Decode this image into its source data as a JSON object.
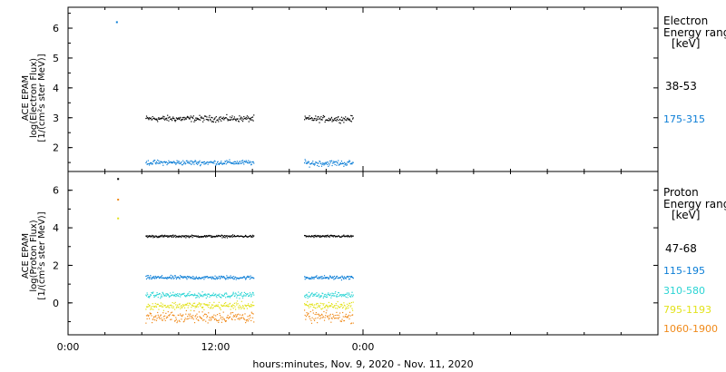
{
  "chart_data": [
    {
      "type": "scatter",
      "panel": "electron",
      "ylabel_lines": [
        "ACE EPAM",
        "log(Electron Flux)",
        "[1/(cm²s ster MeV)]"
      ],
      "ylim": [
        1.2,
        6.7
      ],
      "yticks": [
        2,
        3,
        4,
        5,
        6
      ],
      "xlim_hours": [
        0,
        48
      ],
      "legend_title": [
        "Electron",
        "Energy ranges",
        "[keV]"
      ],
      "series": [
        {
          "name": "38-53",
          "color": "#000000",
          "segments": [
            {
              "x_start": 6.3,
              "x_end": 15.1,
              "level": 2.97,
              "noise": 0.05
            },
            {
              "x_start": 19.2,
              "x_end": 23.2,
              "level": 2.96,
              "noise": 0.05
            }
          ]
        },
        {
          "name": "175-315",
          "color": "#0a7dd6",
          "outliers": [
            [
              3.9,
              6.2
            ]
          ],
          "segments": [
            {
              "x_start": 6.3,
              "x_end": 15.1,
              "level": 1.5,
              "noise": 0.04
            },
            {
              "x_start": 19.2,
              "x_end": 23.2,
              "level": 1.48,
              "noise": 0.05
            }
          ]
        }
      ]
    },
    {
      "type": "scatter",
      "panel": "proton",
      "ylabel_lines": [
        "ACE EPAM",
        "log(Proton Flux)",
        "[1/(cm²s ster MeV)]"
      ],
      "ylim": [
        -1.7,
        7.0
      ],
      "yticks": [
        0,
        2,
        4,
        6
      ],
      "xlim_hours": [
        0,
        48
      ],
      "legend_title": [
        "Proton",
        "Energy ranges",
        "[keV]"
      ],
      "series": [
        {
          "name": "47-68",
          "color": "#000000",
          "outliers": [
            [
              4.0,
              6.6
            ]
          ],
          "segments": [
            {
              "x_start": 6.3,
              "x_end": 15.1,
              "level": 3.55,
              "noise": 0.03
            },
            {
              "x_start": 19.2,
              "x_end": 23.2,
              "level": 3.55,
              "noise": 0.03
            }
          ]
        },
        {
          "name": "115-195",
          "color": "#0a7dd6",
          "segments": [
            {
              "x_start": 6.3,
              "x_end": 15.1,
              "level": 1.35,
              "noise": 0.05
            },
            {
              "x_start": 19.2,
              "x_end": 23.2,
              "level": 1.35,
              "noise": 0.05
            }
          ]
        },
        {
          "name": "310-580",
          "color": "#2ad4d4",
          "segments": [
            {
              "x_start": 6.3,
              "x_end": 15.1,
              "level": 0.42,
              "noise": 0.07
            },
            {
              "x_start": 19.2,
              "x_end": 23.2,
              "level": 0.42,
              "noise": 0.07
            }
          ]
        },
        {
          "name": "795-1193",
          "color": "#e2e21a",
          "outliers": [
            [
              4.0,
              4.5
            ]
          ],
          "segments": [
            {
              "x_start": 6.3,
              "x_end": 15.1,
              "level": -0.15,
              "noise": 0.1
            },
            {
              "x_start": 19.2,
              "x_end": 23.2,
              "level": -0.15,
              "noise": 0.1
            }
          ]
        },
        {
          "name": "1060-1900",
          "color": "#f08a1a",
          "outliers": [
            [
              4.0,
              5.5
            ]
          ],
          "segments": [
            {
              "x_start": 6.3,
              "x_end": 15.1,
              "level": -0.75,
              "noise": 0.15
            },
            {
              "x_start": 19.2,
              "x_end": 23.2,
              "level": -0.75,
              "noise": 0.15
            }
          ]
        }
      ]
    }
  ],
  "x_axis": {
    "ticks": [
      {
        "hours": 0,
        "label": "0:00"
      },
      {
        "hours": 12,
        "label": "12:00"
      },
      {
        "hours": 24,
        "label": "0:00"
      }
    ],
    "minor_step_hours": 3,
    "xlabel": "hours:minutes, Nov.  9, 2020 - Nov. 11, 2020"
  }
}
